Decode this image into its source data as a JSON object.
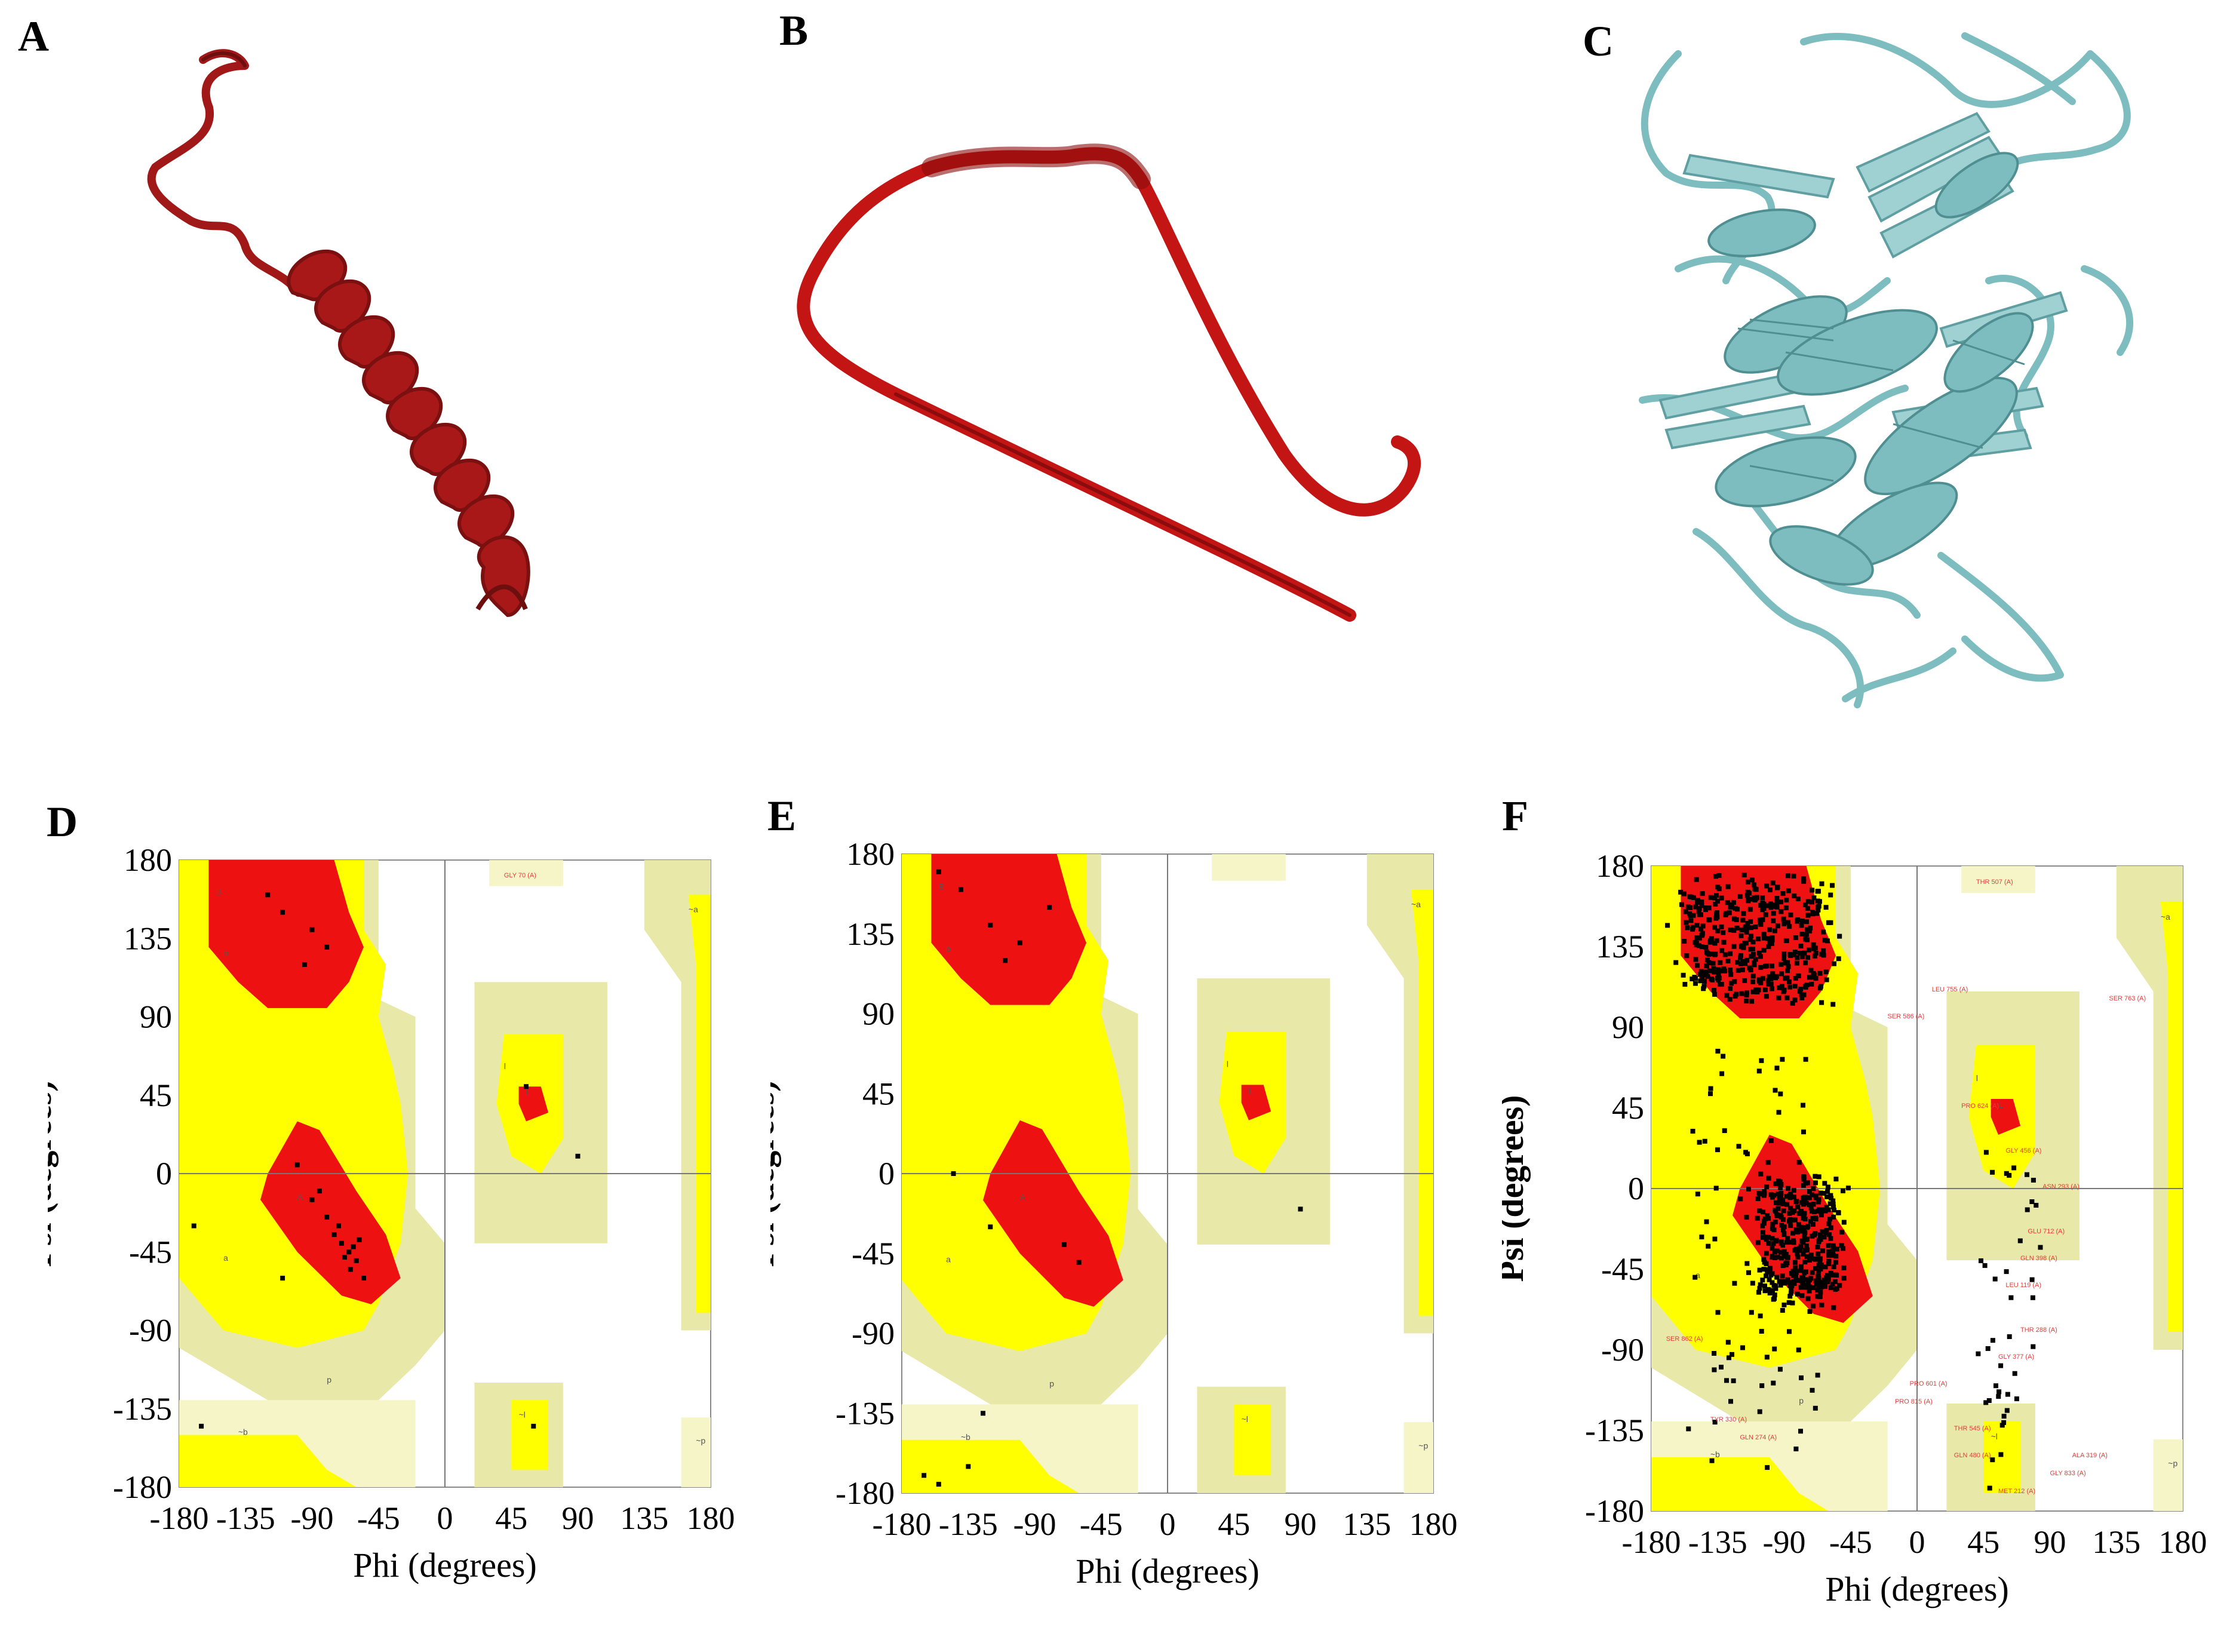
{
  "panels": {
    "A": {
      "letter": "A"
    },
    "B": {
      "letter": "B"
    },
    "C": {
      "letter": "C"
    },
    "D": {
      "letter": "D"
    },
    "E": {
      "letter": "E"
    },
    "F": {
      "letter": "F"
    }
  },
  "colors": {
    "core": "#ee1111",
    "allowed": "#ffff00",
    "generous": "#e8e8a8",
    "disallowed_light": "#f5f5c8",
    "background": "#ffffff",
    "helix_A": "#a01818",
    "strand_B": "#c41515",
    "protein_C": "#7dbdc0",
    "point": "#000000"
  },
  "chart_data": [
    {
      "type": "scatter",
      "panel": "D",
      "xlabel": "Phi (degrees)",
      "ylabel": "Psi (degrees)",
      "xlim": [
        -180,
        180
      ],
      "ylim": [
        -180,
        180
      ],
      "xticks": [
        "-180",
        "-135",
        "-90",
        "-45",
        "0",
        "45",
        "90",
        "135",
        "180"
      ],
      "yticks": [
        "180",
        "135",
        "90",
        "45",
        "0",
        "-45",
        "-90",
        "-135",
        "-180"
      ],
      "region_labels": [
        "B",
        "b",
        "A",
        "a",
        "L",
        "l",
        "p",
        "~b",
        "~a",
        "~l",
        "~p"
      ],
      "points": [
        [
          -120,
          160
        ],
        [
          -110,
          150
        ],
        [
          -90,
          140
        ],
        [
          -95,
          120
        ],
        [
          -80,
          130
        ],
        [
          -100,
          5
        ],
        [
          -85,
          -10
        ],
        [
          -80,
          -25
        ],
        [
          -75,
          -35
        ],
        [
          -70,
          -40
        ],
        [
          -65,
          -45
        ],
        [
          -60,
          -50
        ],
        [
          -62,
          -42
        ],
        [
          -68,
          -48
        ],
        [
          -72,
          -30
        ],
        [
          -58,
          -38
        ],
        [
          -64,
          -55
        ],
        [
          -55,
          -60
        ],
        [
          -90,
          -15
        ],
        [
          -110,
          -60
        ],
        [
          -170,
          -30
        ],
        [
          55,
          50
        ],
        [
          90,
          10
        ],
        [
          60,
          -145
        ],
        [
          -165,
          -145
        ]
      ],
      "outlier_labels": [
        "GLY 70 (A)"
      ]
    },
    {
      "type": "scatter",
      "panel": "E",
      "xlabel": "Phi (degrees)",
      "ylabel": "Psi (degrees)",
      "xlim": [
        -180,
        180
      ],
      "ylim": [
        -180,
        180
      ],
      "xticks": [
        "-180",
        "-135",
        "-90",
        "-45",
        "0",
        "45",
        "90",
        "135",
        "180"
      ],
      "yticks": [
        "180",
        "135",
        "90",
        "45",
        "0",
        "-45",
        "-90",
        "-135",
        "-180"
      ],
      "region_labels": [
        "B",
        "b",
        "A",
        "a",
        "L",
        "l",
        "p",
        "~b",
        "~a",
        "~l",
        "~p"
      ],
      "points": [
        [
          -155,
          170
        ],
        [
          -140,
          160
        ],
        [
          -120,
          140
        ],
        [
          -110,
          120
        ],
        [
          -100,
          130
        ],
        [
          -80,
          150
        ],
        [
          -145,
          0
        ],
        [
          -120,
          -30
        ],
        [
          -70,
          -40
        ],
        [
          -60,
          -50
        ],
        [
          -135,
          -165
        ],
        [
          -165,
          -170
        ],
        [
          -155,
          -175
        ],
        [
          90,
          -20
        ],
        [
          -125,
          -135
        ]
      ],
      "outlier_labels": []
    },
    {
      "type": "scatter",
      "panel": "F",
      "xlabel": "Phi (degrees)",
      "ylabel": "Psi (degrees)",
      "xlim": [
        -180,
        180
      ],
      "ylim": [
        -180,
        180
      ],
      "xticks": [
        "-180",
        "-135",
        "-90",
        "-45",
        "0",
        "45",
        "90",
        "135",
        "180"
      ],
      "yticks": [
        "180",
        "135",
        "90",
        "45",
        "0",
        "-45",
        "-90",
        "-135",
        "-180"
      ],
      "region_labels": [
        "B",
        "b",
        "A",
        "a",
        "L",
        "l",
        "p",
        "~b",
        "~a",
        "~l",
        "~p"
      ],
      "clusters": [
        {
          "region": "beta",
          "phi_range": [
            -170,
            -50
          ],
          "psi_range": [
            100,
            180
          ],
          "count": 420
        },
        {
          "region": "alpha",
          "phi_range": [
            -110,
            -45
          ],
          "psi_range": [
            -70,
            10
          ],
          "count": 380
        },
        {
          "region": "bridge",
          "phi_range": [
            -160,
            -60
          ],
          "psi_range": [
            -180,
            100
          ],
          "count": 90
        },
        {
          "region": "left",
          "phi_range": [
            40,
            90
          ],
          "psi_range": [
            -170,
            60
          ],
          "count": 40
        }
      ],
      "outlier_labels": [
        "THR 507 (A)",
        "LEU 755 (A)",
        "SER 586 (A)",
        "SER 763 (A)",
        "PRO 624 (A)",
        "GLY 456 (A)",
        "ASN 293 (A)",
        "GLU 712 (A)",
        "GLN 398 (A)",
        "LEU 119 (A)",
        "THR 288 (A)",
        "GLY 377 (A)",
        "SER 862 (A)",
        "PRO 601 (A)",
        "PRO 815 (A)",
        "TYR 330 (A)",
        "GLN 274 (A)",
        "THR 545 (A)",
        "GLN 480 (A)",
        "ALA 319 (A)",
        "GLY 833 (A)",
        "MET 212 (A)"
      ]
    }
  ]
}
